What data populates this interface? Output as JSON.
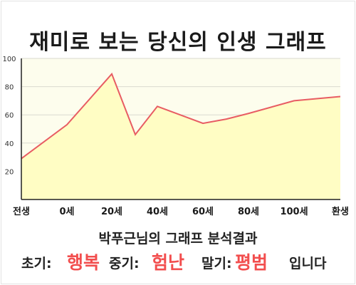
{
  "title": "재미로 보는 당신의 인생 그래프",
  "chart_data": {
    "type": "area",
    "x_categories": [
      "전생",
      "0세",
      "20세",
      "40세",
      "60세",
      "80세",
      "100세",
      "환생"
    ],
    "points": [
      {
        "x": "전생",
        "y": 29
      },
      {
        "x": "0세",
        "y": 53
      },
      {
        "x": "20세",
        "y": 89
      },
      {
        "x": "30세",
        "y": 46
      },
      {
        "x": "40세",
        "y": 66
      },
      {
        "x": "60세",
        "y": 54
      },
      {
        "x": "70세",
        "y": 57
      },
      {
        "x": "80세",
        "y": 61
      },
      {
        "x": "100세",
        "y": 70
      },
      {
        "x": "환생",
        "y": 73
      }
    ],
    "ylim": [
      0,
      100
    ],
    "y_ticks": [
      20,
      40,
      60,
      80,
      100
    ],
    "colors": {
      "line": "#e85c63",
      "fill": "#fffdc4",
      "plot_background": "#fdfded",
      "grid": "#d9d9cf"
    },
    "grid": true,
    "legend": "none"
  },
  "result": {
    "title": "박푸근님의 그래프 분석결과",
    "early_label": "초기:",
    "early_value": "행복",
    "middle_label": "중기:",
    "middle_value": "험난",
    "late_label": "말기:",
    "late_value": "평범",
    "suffix": "입니다"
  }
}
